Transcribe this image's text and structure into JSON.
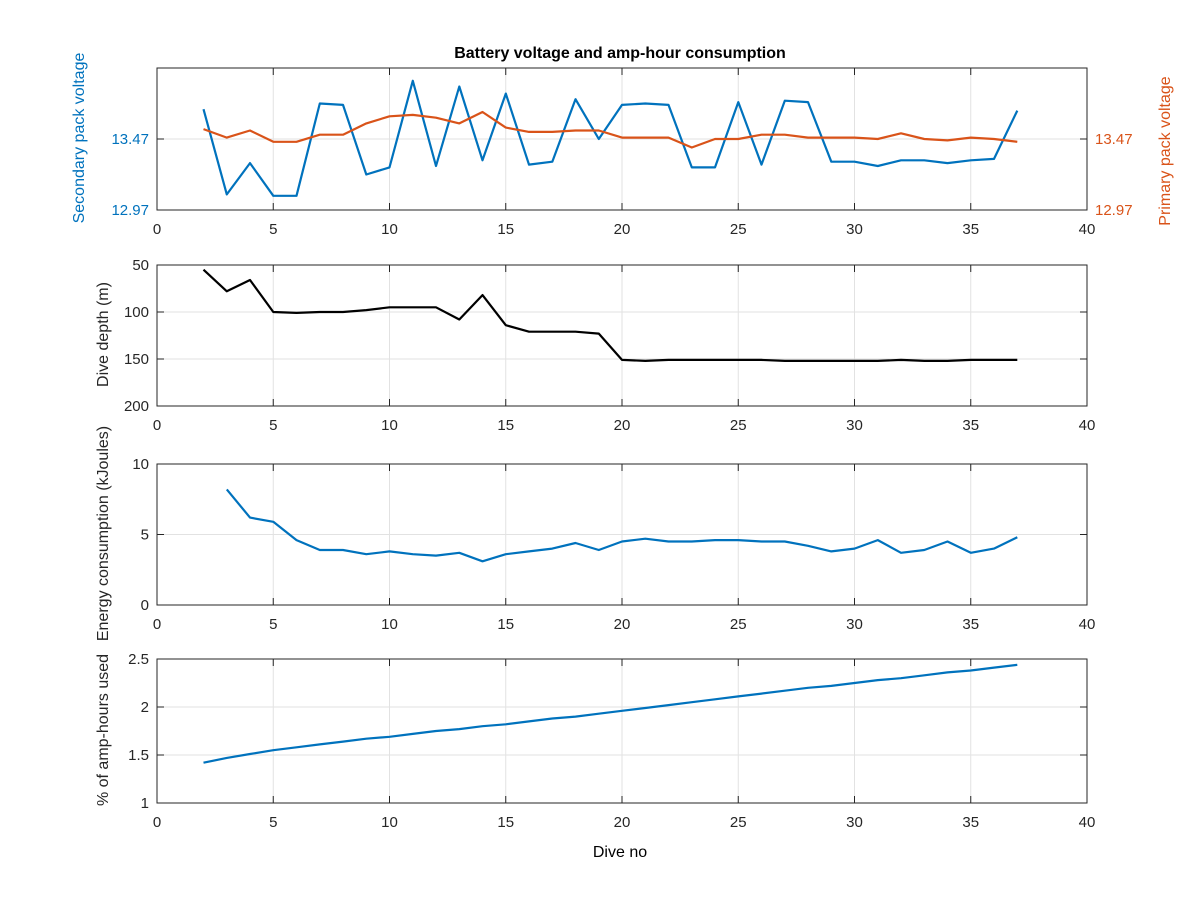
{
  "figure": {
    "title": "Battery voltage and amp-hour consumption",
    "xlabel": "Dive no"
  },
  "colors": {
    "blue": "#0072bd",
    "orange": "#d95319",
    "black": "#000000",
    "grid": "#e2e2e2",
    "axis": "#262626"
  },
  "chart_data": [
    {
      "type": "line",
      "title": "Battery voltage and amp-hour consumption",
      "xlim": [
        0,
        40
      ],
      "xticks": [
        0,
        5,
        10,
        15,
        20,
        25,
        30,
        35,
        40
      ],
      "ylim": [
        12.97,
        13.97
      ],
      "yticks": [
        12.97,
        13.47
      ],
      "ylabel": "Secondary pack voltage",
      "y2lim": [
        12.97,
        13.97
      ],
      "y2ticks": [
        12.97,
        13.47
      ],
      "y2label": "Primary pack voltage",
      "grid": true,
      "x": [
        2,
        3,
        4,
        5,
        6,
        7,
        8,
        9,
        10,
        11,
        12,
        13,
        14,
        15,
        16,
        17,
        18,
        19,
        20,
        21,
        22,
        23,
        24,
        25,
        26,
        27,
        28,
        29,
        30,
        31,
        32,
        33,
        34,
        35,
        36,
        37
      ],
      "series": [
        {
          "axis": "left",
          "color": "blue",
          "values": [
            13.68,
            13.08,
            13.3,
            13.07,
            13.07,
            13.72,
            13.71,
            13.22,
            13.27,
            13.88,
            13.28,
            13.84,
            13.32,
            13.79,
            13.29,
            13.31,
            13.75,
            13.47,
            13.71,
            13.72,
            13.71,
            13.27,
            13.27,
            13.73,
            13.29,
            13.74,
            13.73,
            13.31,
            13.31,
            13.28,
            13.32,
            13.32,
            13.3,
            13.32,
            13.33,
            13.67
          ]
        },
        {
          "axis": "right",
          "color": "orange",
          "values": [
            13.54,
            13.48,
            13.53,
            13.45,
            13.45,
            13.5,
            13.5,
            13.58,
            13.63,
            13.64,
            13.62,
            13.58,
            13.66,
            13.55,
            13.52,
            13.52,
            13.53,
            13.53,
            13.48,
            13.48,
            13.48,
            13.41,
            13.47,
            13.47,
            13.5,
            13.5,
            13.48,
            13.48,
            13.48,
            13.47,
            13.51,
            13.47,
            13.46,
            13.48,
            13.47,
            13.45
          ]
        }
      ]
    },
    {
      "type": "line",
      "xlim": [
        0,
        40
      ],
      "xticks": [
        0,
        5,
        10,
        15,
        20,
        25,
        30,
        35,
        40
      ],
      "ylim": [
        50,
        200
      ],
      "yreverse": true,
      "yticks": [
        50,
        100,
        150,
        200
      ],
      "ytick_labels": [
        "50",
        "100",
        "150",
        "200"
      ],
      "ylabel": "Dive depth (m)",
      "grid": true,
      "x": [
        2,
        3,
        4,
        5,
        6,
        7,
        8,
        9,
        10,
        11,
        12,
        13,
        14,
        15,
        16,
        17,
        18,
        19,
        20,
        21,
        22,
        23,
        24,
        25,
        26,
        27,
        28,
        29,
        30,
        31,
        32,
        33,
        34,
        35,
        36,
        37
      ],
      "series": [
        {
          "color": "black",
          "values": [
            55,
            78,
            66,
            100,
            101,
            100,
            100,
            98,
            95,
            95,
            95,
            108,
            82,
            114,
            121,
            121,
            121,
            123,
            151,
            152,
            151,
            151,
            151,
            151,
            151,
            152,
            152,
            152,
            152,
            152,
            151,
            152,
            152,
            151,
            151,
            151
          ]
        }
      ]
    },
    {
      "type": "line",
      "xlim": [
        0,
        40
      ],
      "xticks": [
        0,
        5,
        10,
        15,
        20,
        25,
        30,
        35,
        40
      ],
      "ylim": [
        0,
        10
      ],
      "yticks": [
        0,
        5,
        10
      ],
      "ylabel": "Energy consumption (kJoules)",
      "grid": true,
      "x": [
        3,
        4,
        5,
        6,
        7,
        8,
        9,
        10,
        11,
        12,
        13,
        14,
        15,
        16,
        17,
        18,
        19,
        20,
        21,
        22,
        23,
        24,
        25,
        26,
        27,
        28,
        29,
        30,
        31,
        32,
        33,
        34,
        35,
        36,
        37
      ],
      "series": [
        {
          "color": "blue",
          "values": [
            8.2,
            6.2,
            5.9,
            4.6,
            3.9,
            3.9,
            3.6,
            3.8,
            3.6,
            3.5,
            3.7,
            3.1,
            3.6,
            3.8,
            4.0,
            4.4,
            3.9,
            4.5,
            4.7,
            4.5,
            4.5,
            4.6,
            4.6,
            4.5,
            4.5,
            4.2,
            3.8,
            4.0,
            4.6,
            3.7,
            3.9,
            4.5,
            3.7,
            4.0,
            4.8
          ]
        }
      ]
    },
    {
      "type": "line",
      "xlim": [
        0,
        40
      ],
      "xticks": [
        0,
        5,
        10,
        15,
        20,
        25,
        30,
        35,
        40
      ],
      "ylim": [
        1,
        2.5
      ],
      "yticks": [
        1,
        1.5,
        2,
        2.5
      ],
      "ytick_labels": [
        "1",
        "1.5",
        "2",
        "2.5"
      ],
      "ylabel": "% of amp-hours used",
      "xlabel": "Dive no",
      "grid": true,
      "x": [
        2,
        3,
        4,
        5,
        6,
        7,
        8,
        9,
        10,
        11,
        12,
        13,
        14,
        15,
        16,
        17,
        18,
        19,
        20,
        21,
        22,
        23,
        24,
        25,
        26,
        27,
        28,
        29,
        30,
        31,
        32,
        33,
        34,
        35,
        36,
        37
      ],
      "series": [
        {
          "color": "blue",
          "values": [
            1.42,
            1.47,
            1.51,
            1.55,
            1.58,
            1.61,
            1.64,
            1.67,
            1.69,
            1.72,
            1.75,
            1.77,
            1.8,
            1.82,
            1.85,
            1.88,
            1.9,
            1.93,
            1.96,
            1.99,
            2.02,
            2.05,
            2.08,
            2.11,
            2.14,
            2.17,
            2.2,
            2.22,
            2.25,
            2.28,
            2.3,
            2.33,
            2.36,
            2.38,
            2.41,
            2.44
          ]
        }
      ]
    }
  ]
}
